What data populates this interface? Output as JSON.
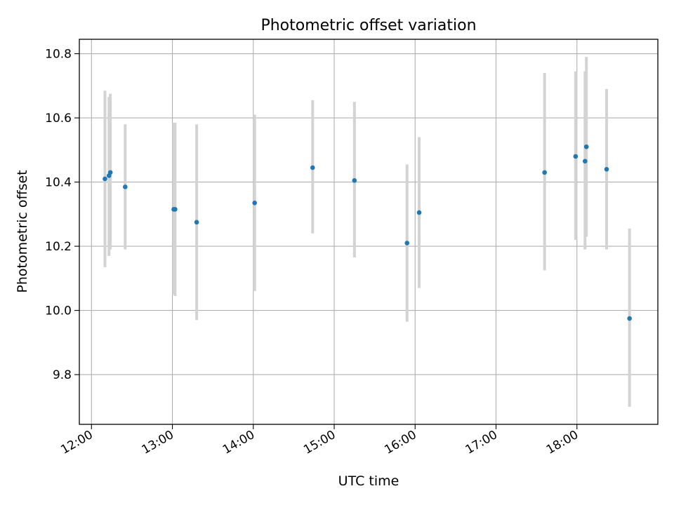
{
  "chart_data": {
    "type": "scatter",
    "title": "Photometric offset variation",
    "xlabel": "UTC time",
    "ylabel": "Photometric offset",
    "x_tick_labels": [
      "12:00",
      "13:00",
      "14:00",
      "15:00",
      "16:00",
      "17:00",
      "18:00"
    ],
    "x_ticks": [
      "12:00",
      "13:00",
      "14:00",
      "15:00",
      "16:00",
      "17:00",
      "18:00"
    ],
    "xlim": [
      "11:51",
      "19:00"
    ],
    "y_ticks": [
      9.8,
      10.0,
      10.2,
      10.4,
      10.6,
      10.8
    ],
    "y_tick_labels": [
      "9.8",
      "10.0",
      "10.2",
      "10.4",
      "10.6",
      "10.8"
    ],
    "ylim": [
      9.645,
      10.845
    ],
    "grid": true,
    "marker_color": "#1f77b4",
    "errorbar_color": "#d3d3d3",
    "points": [
      {
        "time": "12:10",
        "y": 10.41,
        "low": 10.135,
        "high": 10.685
      },
      {
        "time": "12:13",
        "y": 10.42,
        "low": 10.17,
        "high": 10.665
      },
      {
        "time": "12:14",
        "y": 10.43,
        "low": 10.19,
        "high": 10.675
      },
      {
        "time": "12:25",
        "y": 10.385,
        "low": 10.19,
        "high": 10.58
      },
      {
        "time": "13:01",
        "y": 10.315,
        "low": 10.05,
        "high": 10.585
      },
      {
        "time": "13:02",
        "y": 10.315,
        "low": 10.045,
        "high": 10.585
      },
      {
        "time": "13:18",
        "y": 10.275,
        "low": 9.97,
        "high": 10.58
      },
      {
        "time": "14:01",
        "y": 10.335,
        "low": 10.06,
        "high": 10.61
      },
      {
        "time": "14:44",
        "y": 10.445,
        "low": 10.24,
        "high": 10.655
      },
      {
        "time": "15:15",
        "y": 10.405,
        "low": 10.165,
        "high": 10.65
      },
      {
        "time": "15:54",
        "y": 10.21,
        "low": 9.965,
        "high": 10.455
      },
      {
        "time": "16:03",
        "y": 10.305,
        "low": 10.07,
        "high": 10.54
      },
      {
        "time": "17:36",
        "y": 10.43,
        "low": 10.125,
        "high": 10.74
      },
      {
        "time": "17:59",
        "y": 10.48,
        "low": 10.22,
        "high": 10.745
      },
      {
        "time": "18:06",
        "y": 10.465,
        "low": 10.19,
        "high": 10.745
      },
      {
        "time": "18:07",
        "y": 10.51,
        "low": 10.23,
        "high": 10.79
      },
      {
        "time": "18:22",
        "y": 10.44,
        "low": 10.19,
        "high": 10.69
      },
      {
        "time": "18:39",
        "y": 9.975,
        "low": 9.7,
        "high": 10.255
      }
    ]
  }
}
